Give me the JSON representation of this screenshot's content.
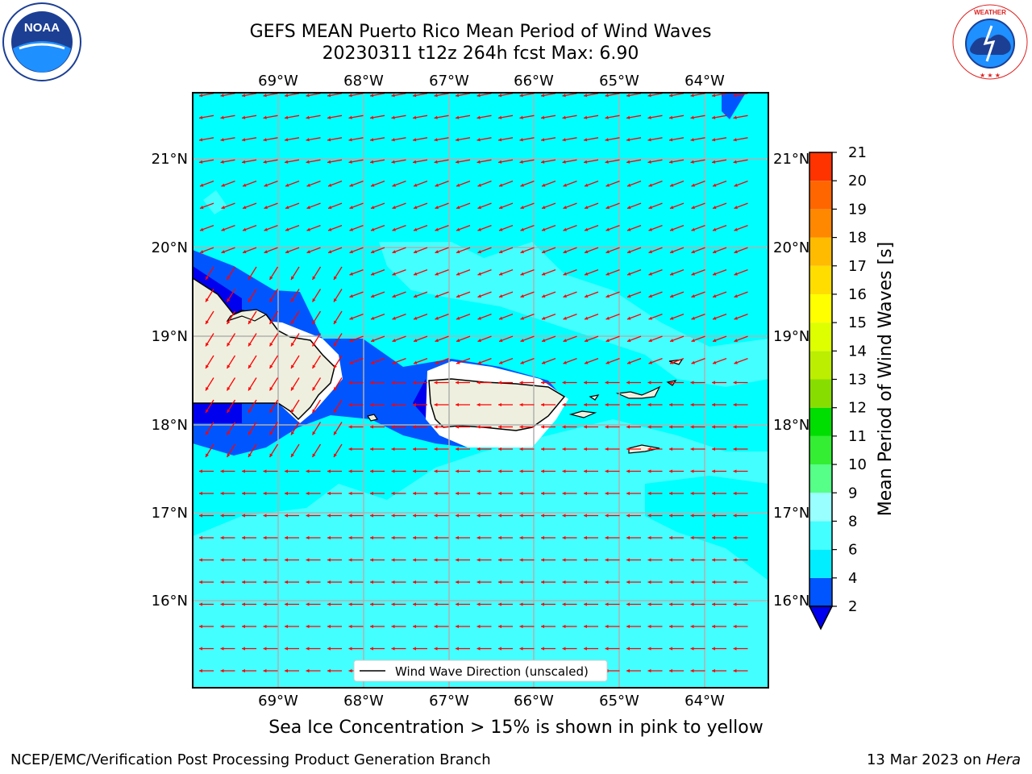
{
  "header": {
    "title_line1": "GEFS MEAN Puerto Rico Mean Period of Wind Waves",
    "title_line2": "20230311 t12z 264h fcst   Max: 6.90"
  },
  "logos": {
    "left": {
      "icon": "noaa-logo",
      "text": "NOAA"
    },
    "right": {
      "icon": "nws-logo",
      "text": "NATIONAL WEATHER SERVICE"
    }
  },
  "map": {
    "lon_labels": [
      "69°W",
      "68°W",
      "67°W",
      "66°W",
      "65°W",
      "64°W"
    ],
    "lat_labels": [
      "21°N",
      "20°N",
      "19°N",
      "18°N",
      "17°N",
      "16°N"
    ],
    "legend_label": "Wind Wave Direction (unscaled)",
    "background_color": "#00ffff",
    "land_color": "#efefdf",
    "arrow_color": "#ff0000",
    "gridline_color": "#b0b0b0"
  },
  "colorbar": {
    "label": "Mean Period of Wind Waves [s]",
    "ticks": [
      "2",
      "4",
      "6",
      "8",
      "9",
      "10",
      "11",
      "12",
      "13",
      "14",
      "15",
      "16",
      "17",
      "18",
      "19",
      "20",
      "21"
    ],
    "colors": [
      "#0055ff",
      "#00eeff",
      "#44ffff",
      "#99ffff",
      "#55ff88",
      "#33ee33",
      "#00dd00",
      "#88dd00",
      "#bbee00",
      "#ddff00",
      "#ffff00",
      "#ffdd00",
      "#ffbb00",
      "#ff8800",
      "#ff6600",
      "#ff3300",
      "#ff0000"
    ],
    "under_color": "#0000ee"
  },
  "notes": {
    "sea_ice": "Sea Ice Concentration > 15% is shown in pink to yellow"
  },
  "footer": {
    "left": "NCEP/EMC/Verification Post Processing Product Generation Branch",
    "right_prefix": "13 Mar 2023 on ",
    "right_machine": "Hera"
  }
}
